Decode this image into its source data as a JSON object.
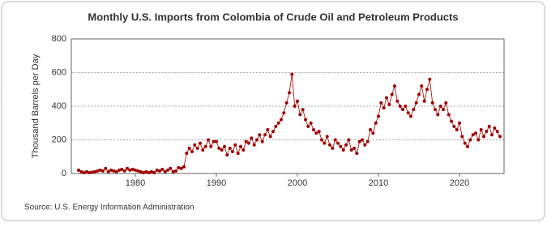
{
  "chart_data": {
    "type": "line",
    "title": "Monthly U.S. Imports from Colombia of Crude Oil and Petroleum Products",
    "y_label": "Thousand Barrels per Day",
    "source": "Source: U.S. Energy Information Administration",
    "xlim": [
      1972.1,
      2025.5
    ],
    "xticks": [
      1980,
      1990,
      2000,
      2010,
      2020
    ],
    "ylim": [
      0,
      800
    ],
    "yticks": [
      0,
      200,
      400,
      600,
      800
    ],
    "grid": true,
    "series": [
      {
        "name": "Imports from Colombia",
        "color": "#a00000",
        "x": [
          1973,
          1973.33,
          1973.67,
          1974,
          1974.33,
          1974.67,
          1975,
          1975.33,
          1975.67,
          1976,
          1976.33,
          1976.67,
          1977,
          1977.33,
          1977.67,
          1978,
          1978.33,
          1978.67,
          1979,
          1979.33,
          1979.67,
          1980,
          1980.33,
          1980.67,
          1981,
          1981.33,
          1981.67,
          1982,
          1982.33,
          1982.67,
          1983,
          1983.33,
          1983.67,
          1984,
          1984.33,
          1984.67,
          1985,
          1985.33,
          1985.67,
          1986,
          1986.33,
          1986.67,
          1987,
          1987.33,
          1987.67,
          1988,
          1988.33,
          1988.67,
          1989,
          1989.33,
          1989.67,
          1990,
          1990.33,
          1990.67,
          1991,
          1991.33,
          1991.67,
          1992,
          1992.33,
          1992.67,
          1993,
          1993.33,
          1993.67,
          1994,
          1994.33,
          1994.67,
          1995,
          1995.33,
          1995.67,
          1996,
          1996.33,
          1996.67,
          1997,
          1997.33,
          1997.67,
          1998,
          1998.33,
          1998.67,
          1999,
          1999.33,
          1999.67,
          2000,
          2000.33,
          2000.67,
          2001,
          2001.33,
          2001.67,
          2002,
          2002.33,
          2002.67,
          2003,
          2003.33,
          2003.67,
          2004,
          2004.33,
          2004.67,
          2005,
          2005.33,
          2005.67,
          2006,
          2006.33,
          2006.67,
          2007,
          2007.33,
          2007.67,
          2008,
          2008.33,
          2008.67,
          2009,
          2009.33,
          2009.67,
          2010,
          2010.33,
          2010.67,
          2011,
          2011.33,
          2011.67,
          2012,
          2012.33,
          2012.67,
          2013,
          2013.33,
          2013.67,
          2014,
          2014.33,
          2014.67,
          2015,
          2015.33,
          2015.67,
          2016,
          2016.33,
          2016.67,
          2017,
          2017.33,
          2017.67,
          2018,
          2018.33,
          2018.67,
          2019,
          2019.33,
          2019.67,
          2020,
          2020.33,
          2020.67,
          2021,
          2021.33,
          2021.67,
          2022,
          2022.33,
          2022.67,
          2023,
          2023.33,
          2023.67,
          2024,
          2024.33,
          2024.67,
          2025
        ],
        "values": [
          20,
          10,
          5,
          10,
          5,
          8,
          10,
          15,
          20,
          15,
          30,
          10,
          20,
          15,
          10,
          20,
          25,
          15,
          30,
          20,
          25,
          20,
          15,
          10,
          5,
          10,
          5,
          10,
          5,
          20,
          15,
          25,
          10,
          20,
          30,
          10,
          15,
          35,
          30,
          40,
          120,
          150,
          130,
          170,
          150,
          180,
          140,
          160,
          200,
          160,
          190,
          190,
          150,
          140,
          160,
          110,
          150,
          130,
          170,
          120,
          160,
          140,
          190,
          180,
          210,
          170,
          200,
          230,
          190,
          230,
          260,
          220,
          250,
          280,
          300,
          320,
          360,
          420,
          480,
          590,
          400,
          430,
          350,
          380,
          320,
          280,
          300,
          260,
          240,
          250,
          200,
          180,
          220,
          170,
          150,
          200,
          180,
          160,
          140,
          170,
          200,
          140,
          150,
          120,
          190,
          200,
          170,
          190,
          260,
          240,
          300,
          340,
          420,
          390,
          450,
          410,
          470,
          520,
          430,
          400,
          380,
          400,
          360,
          340,
          380,
          420,
          470,
          520,
          430,
          500,
          560,
          420,
          380,
          350,
          400,
          380,
          420,
          350,
          310,
          280,
          260,
          300,
          220,
          180,
          160,
          200,
          230,
          240,
          200,
          260,
          220,
          250,
          280,
          230,
          270,
          250,
          220
        ]
      }
    ]
  }
}
